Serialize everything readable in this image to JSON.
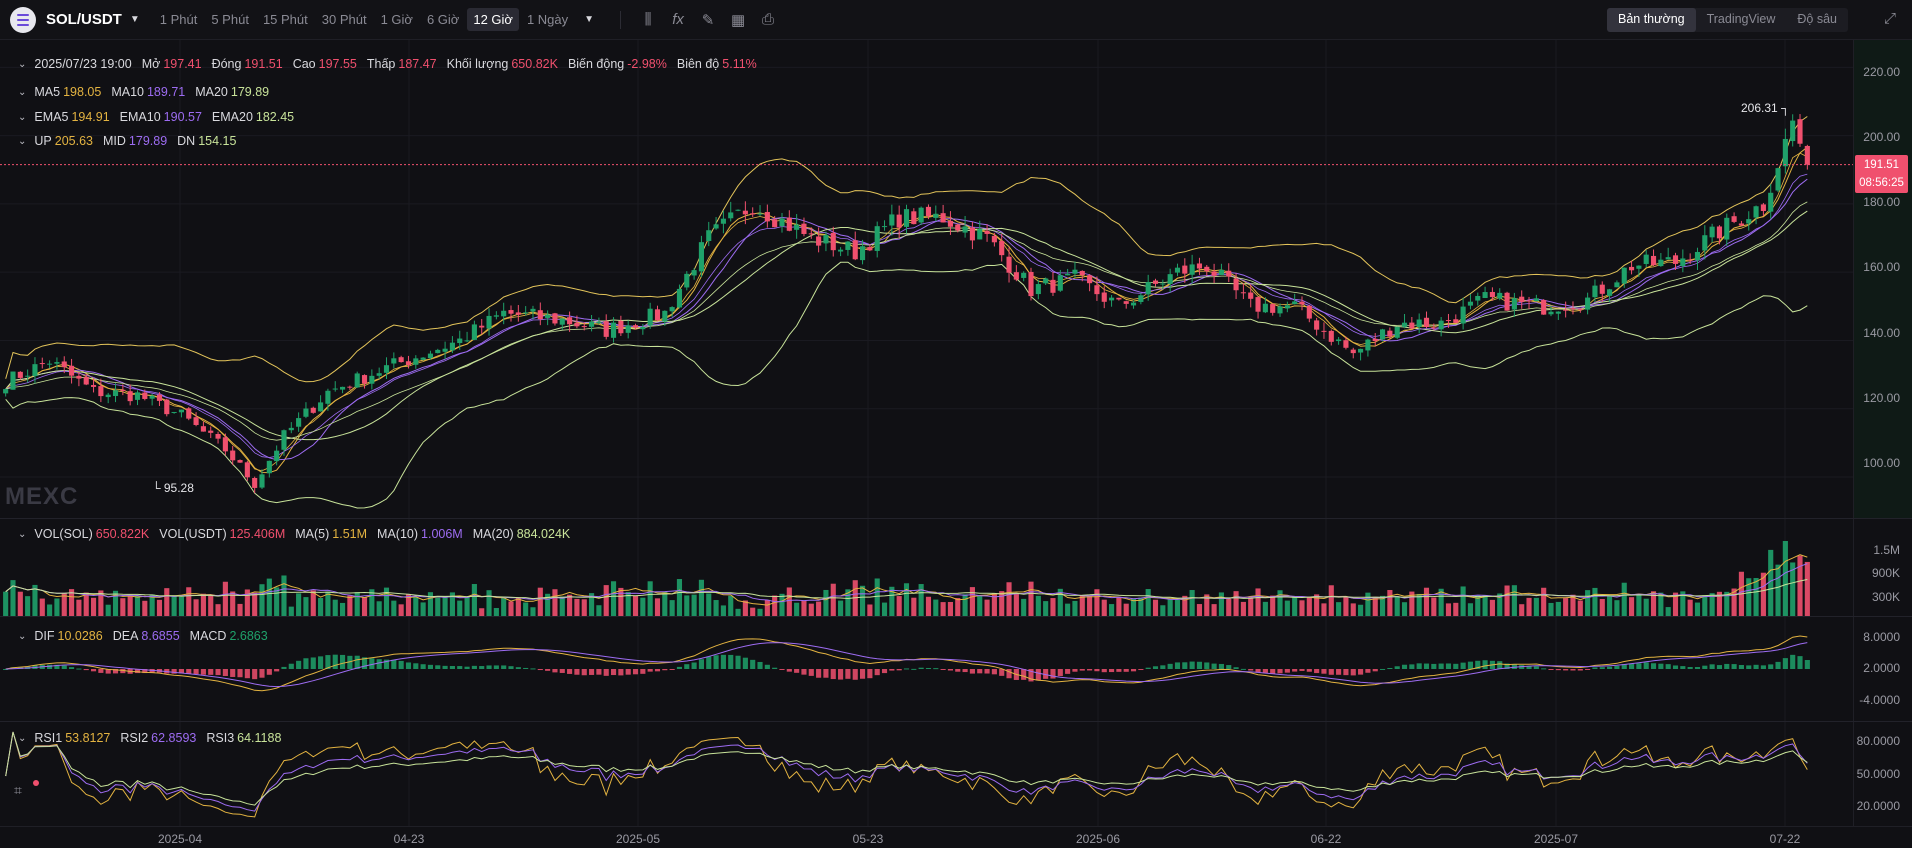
{
  "topbar": {
    "pair": "SOL/USDT",
    "intervals": [
      "1 Phút",
      "5 Phút",
      "15 Phút",
      "30 Phút",
      "1 Giờ",
      "6 Giờ",
      "12 Giờ",
      "1 Ngày"
    ],
    "active_interval": "12 Giờ",
    "view_options": [
      "Bản thường",
      "TradingView",
      "Độ sâu"
    ],
    "active_view": "Bản thường",
    "tool_icons": [
      "candle-type-icon",
      "indicator-fx-icon",
      "draw-pencil-icon",
      "layout-grid-icon",
      "camera-icon"
    ]
  },
  "ohlc": {
    "time": "2025/07/23 19:00",
    "open_label": "Mở",
    "open": "197.41",
    "close_label": "Đóng",
    "close": "191.51",
    "high_label": "Cao",
    "high": "197.55",
    "low_label": "Thấp",
    "low": "187.47",
    "volume_label": "Khối lượng",
    "volume": "650.82K",
    "change_label": "Biến động",
    "change": "-2.98%",
    "amplitude_label": "Biên độ",
    "amplitude": "5.11%"
  },
  "ma_legend": {
    "ma5_label": "MA5",
    "ma5": "198.05",
    "ma10_label": "MA10",
    "ma10": "189.71",
    "ma20_label": "MA20",
    "ma20": "179.89"
  },
  "ema_legend": {
    "ema5_label": "EMA5",
    "ema5": "194.91",
    "ema10_label": "EMA10",
    "ema10": "190.57",
    "ema20_label": "EMA20",
    "ema20": "182.45"
  },
  "boll_legend": {
    "up_label": "UP",
    "up": "205.63",
    "mid_label": "MID",
    "mid": "179.89",
    "dn_label": "DN",
    "dn": "154.15"
  },
  "vol_legend": {
    "vol_sol_label": "VOL(SOL)",
    "vol_sol": "650.822K",
    "vol_usdt_label": "VOL(USDT)",
    "vol_usdt": "125.406M",
    "ma5_label": "MA(5)",
    "ma5": "1.51M",
    "ma10_label": "MA(10)",
    "ma10": "1.006M",
    "ma20_label": "MA(20)",
    "ma20": "884.024K"
  },
  "macd_legend": {
    "dif_label": "DIF",
    "dif": "10.0286",
    "dea_label": "DEA",
    "dea": "8.6855",
    "macd_label": "MACD",
    "macd": "2.6863"
  },
  "rsi_legend": {
    "rsi1_label": "RSI1",
    "rsi1": "53.8127",
    "rsi2_label": "RSI2",
    "rsi2": "62.8593",
    "rsi3_label": "RSI3",
    "rsi3": "64.1188"
  },
  "price_axis": [
    "220.00",
    "200.00",
    "180.00",
    "160.00",
    "140.00",
    "120.00",
    "100.00"
  ],
  "current_price": {
    "price": "191.51",
    "countdown": "08:56:25"
  },
  "extremes": {
    "high": "206.31",
    "low": "95.28"
  },
  "volume_axis": [
    "1.5M",
    "900K",
    "300K"
  ],
  "macd_axis": [
    "8.0000",
    "2.0000",
    "-4.0000"
  ],
  "rsi_axis": [
    "80.0000",
    "50.0000",
    "20.0000"
  ],
  "time_axis": [
    "2025-04",
    "04-23",
    "2025-05",
    "05-23",
    "2025-06",
    "06-22",
    "2025-07",
    "07-22"
  ],
  "watermark": "MEXC",
  "colors": {
    "up": "#1fa16a",
    "down": "#f0506e",
    "ma5": "#e3b341",
    "ma10": "#9d6cf2",
    "ma20": "#c8e39a",
    "boll": "#e3c45a",
    "background": "#101014"
  },
  "chart_data": {
    "type": "candlestick",
    "interval": "12h",
    "anchors": [
      [
        "03-22",
        128
      ],
      [
        "03-25",
        134
      ],
      [
        "03-28",
        125
      ],
      [
        "03-31",
        124
      ],
      [
        "04-03",
        118
      ],
      [
        "04-06",
        108
      ],
      [
        "04-08",
        98
      ],
      [
        "04-10",
        112
      ],
      [
        "04-13",
        125
      ],
      [
        "04-17",
        132
      ],
      [
        "04-22",
        140
      ],
      [
        "04-25",
        148
      ],
      [
        "04-29",
        146
      ],
      [
        "05-02",
        143
      ],
      [
        "05-06",
        148
      ],
      [
        "05-09",
        170
      ],
      [
        "05-12",
        180
      ],
      [
        "05-16",
        170
      ],
      [
        "05-19",
        166
      ],
      [
        "05-22",
        176
      ],
      [
        "05-25",
        176
      ],
      [
        "05-28",
        170
      ],
      [
        "05-31",
        155
      ],
      [
        "06-03",
        158
      ],
      [
        "06-06",
        150
      ],
      [
        "06-10",
        160
      ],
      [
        "06-12",
        162
      ],
      [
        "06-15",
        150
      ],
      [
        "06-18",
        150
      ],
      [
        "06-22",
        136
      ],
      [
        "06-25",
        145
      ],
      [
        "06-28",
        145
      ],
      [
        "07-01",
        152
      ],
      [
        "07-05",
        150
      ],
      [
        "07-08",
        152
      ],
      [
        "07-11",
        162
      ],
      [
        "07-14",
        163
      ],
      [
        "07-17",
        172
      ],
      [
        "07-20",
        180
      ],
      [
        "07-22",
        204
      ],
      [
        "07-23",
        191.51
      ]
    ],
    "high": 206.31,
    "low": 95.28,
    "y_range": [
      88,
      228
    ],
    "last_close": 191.51
  }
}
